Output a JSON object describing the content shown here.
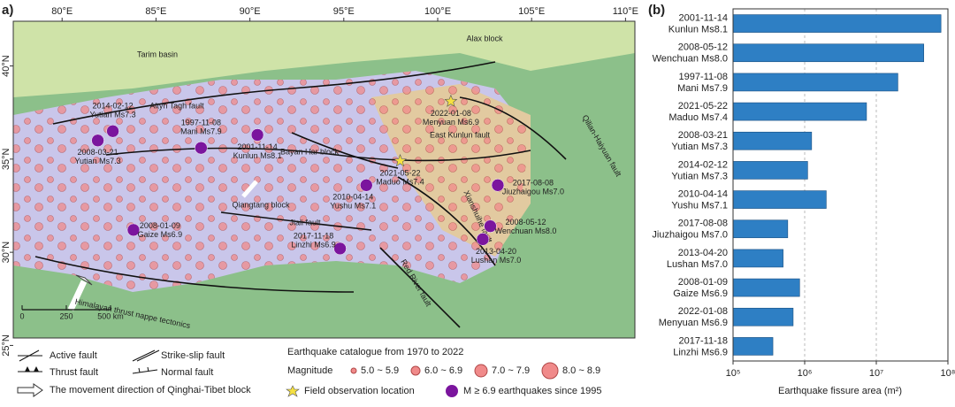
{
  "map": {
    "panel_label": "a)",
    "xlim": [
      77.4,
      110.5
    ],
    "ylim": [
      25.4,
      42.4
    ],
    "xticks": [
      {
        "value": 80,
        "label": "80°E"
      },
      {
        "value": 85,
        "label": "85°E"
      },
      {
        "value": 90,
        "label": "90°E"
      },
      {
        "value": 95,
        "label": "95°E"
      },
      {
        "value": 100,
        "label": "100°E"
      },
      {
        "value": 105,
        "label": "105°E"
      },
      {
        "value": 110,
        "label": "110°E"
      }
    ],
    "yticks": [
      {
        "value": 25,
        "label": "25°N"
      },
      {
        "value": 30,
        "label": "30°N"
      },
      {
        "value": 35,
        "label": "35°N"
      },
      {
        "value": 40,
        "label": "40°N"
      }
    ],
    "events": [
      {
        "date": "2014-02-12",
        "name": "Yutian Ms7.3",
        "lon": 82.7,
        "lat": 36.5
      },
      {
        "date": "2008-03-21",
        "name": "Yutian Ms7.3",
        "lon": 81.9,
        "lat": 36.0
      },
      {
        "date": "1997-11-08",
        "name": "Mani Ms7.9",
        "lon": 87.4,
        "lat": 35.6
      },
      {
        "date": "2001-11-14",
        "name": "Kunlun Ms8.1",
        "lon": 90.4,
        "lat": 36.3
      },
      {
        "date": "2022-01-08",
        "name": "Menyuan Ms6.9",
        "lon": 100.7,
        "lat": 38.1
      },
      {
        "date": "2021-05-22",
        "name": "Maduo Ms7.4",
        "lon": 98.0,
        "lat": 34.9
      },
      {
        "date": "2010-04-14",
        "name": "Yushu Ms7.1",
        "lon": 96.2,
        "lat": 33.6
      },
      {
        "date": "2017-08-08",
        "name": "Jiuzhaigou Ms7.0",
        "lon": 103.2,
        "lat": 33.6
      },
      {
        "date": "2008-01-09",
        "name": "Gaize Ms6.9",
        "lon": 83.8,
        "lat": 31.2
      },
      {
        "date": "2008-05-12",
        "name": "Wenchuan Ms8.0",
        "lon": 102.8,
        "lat": 31.4
      },
      {
        "date": "2017-11-18",
        "name": "Linzhi Ms6.9",
        "lon": 94.8,
        "lat": 30.2
      },
      {
        "date": "2013-04-20",
        "name": "Lushan Ms7.0",
        "lon": 102.4,
        "lat": 30.7
      }
    ],
    "feature_labels": [
      "Tarim basin",
      "Alax block",
      "Altyn Tagh fault",
      "Qilian-Haiyuan fault",
      "Bayan Har block",
      "East Kunlun fault",
      "Qiangtang block",
      "Jiali fault",
      "Xianshuihe fault",
      "Red River fault",
      "Himalayan thrust nappe tectonics"
    ],
    "scale_bar": [
      "0",
      "250",
      "500 km"
    ],
    "legend": {
      "faults": [
        "Active fault",
        "Strike-slip fault",
        "Thrust fault",
        "Normal fault"
      ],
      "movement": "The movement direction of Qinghai-Tibet block",
      "catalogue": "Earthquake catalogue from 1970 to 2022",
      "magnitude_title": "Magnitude",
      "magnitudes": [
        "5.0 ~ 5.9",
        "6.0 ~ 6.9",
        "7.0 ~ 7.9",
        "8.0 ~ 8.9"
      ],
      "field": "Field observation location",
      "recent": "M ≥ 6.9 earthquakes since 1995"
    }
  },
  "chart_data": {
    "type": "bar",
    "orientation": "horizontal",
    "panel_label": "(b)",
    "x_label": "Earthquake fissure area (m²)",
    "log_scale": true,
    "grid": true,
    "color": "#2e7fc4",
    "categories": [
      [
        "2001-11-14",
        "Kunlun Ms8.1"
      ],
      [
        "2008-05-12",
        "Wenchuan Ms8.0"
      ],
      [
        "1997-11-08",
        "Mani Ms7.9"
      ],
      [
        "2021-05-22",
        "Maduo Ms7.4"
      ],
      [
        "2008-03-21",
        "Yutian Ms7.3"
      ],
      [
        "2014-02-12",
        "Yutian Ms7.3"
      ],
      [
        "2010-04-14",
        "Yushu Ms7.1"
      ],
      [
        "2017-08-08",
        "Jiuzhaigou Ms7.0"
      ],
      [
        "2013-04-20",
        "Lushan Ms7.0"
      ],
      [
        "2008-01-09",
        "Gaize Ms6.9"
      ],
      [
        "2022-01-08",
        "Menyuan Ms6.9"
      ],
      [
        "2017-11-18",
        "Linzhi Ms6.9"
      ]
    ],
    "values": [
      80000000,
      46000000,
      20000000,
      7300000,
      1250000,
      1100000,
      2000000,
      580000,
      500000,
      850000,
      690000,
      360000
    ],
    "xlim": [
      100000,
      100000000
    ],
    "xticks": [
      {
        "value": 100000,
        "label": "10⁵"
      },
      {
        "value": 1000000,
        "label": "10⁶"
      },
      {
        "value": 10000000,
        "label": "10⁷"
      },
      {
        "value": 100000000,
        "label": "10⁸"
      }
    ]
  }
}
